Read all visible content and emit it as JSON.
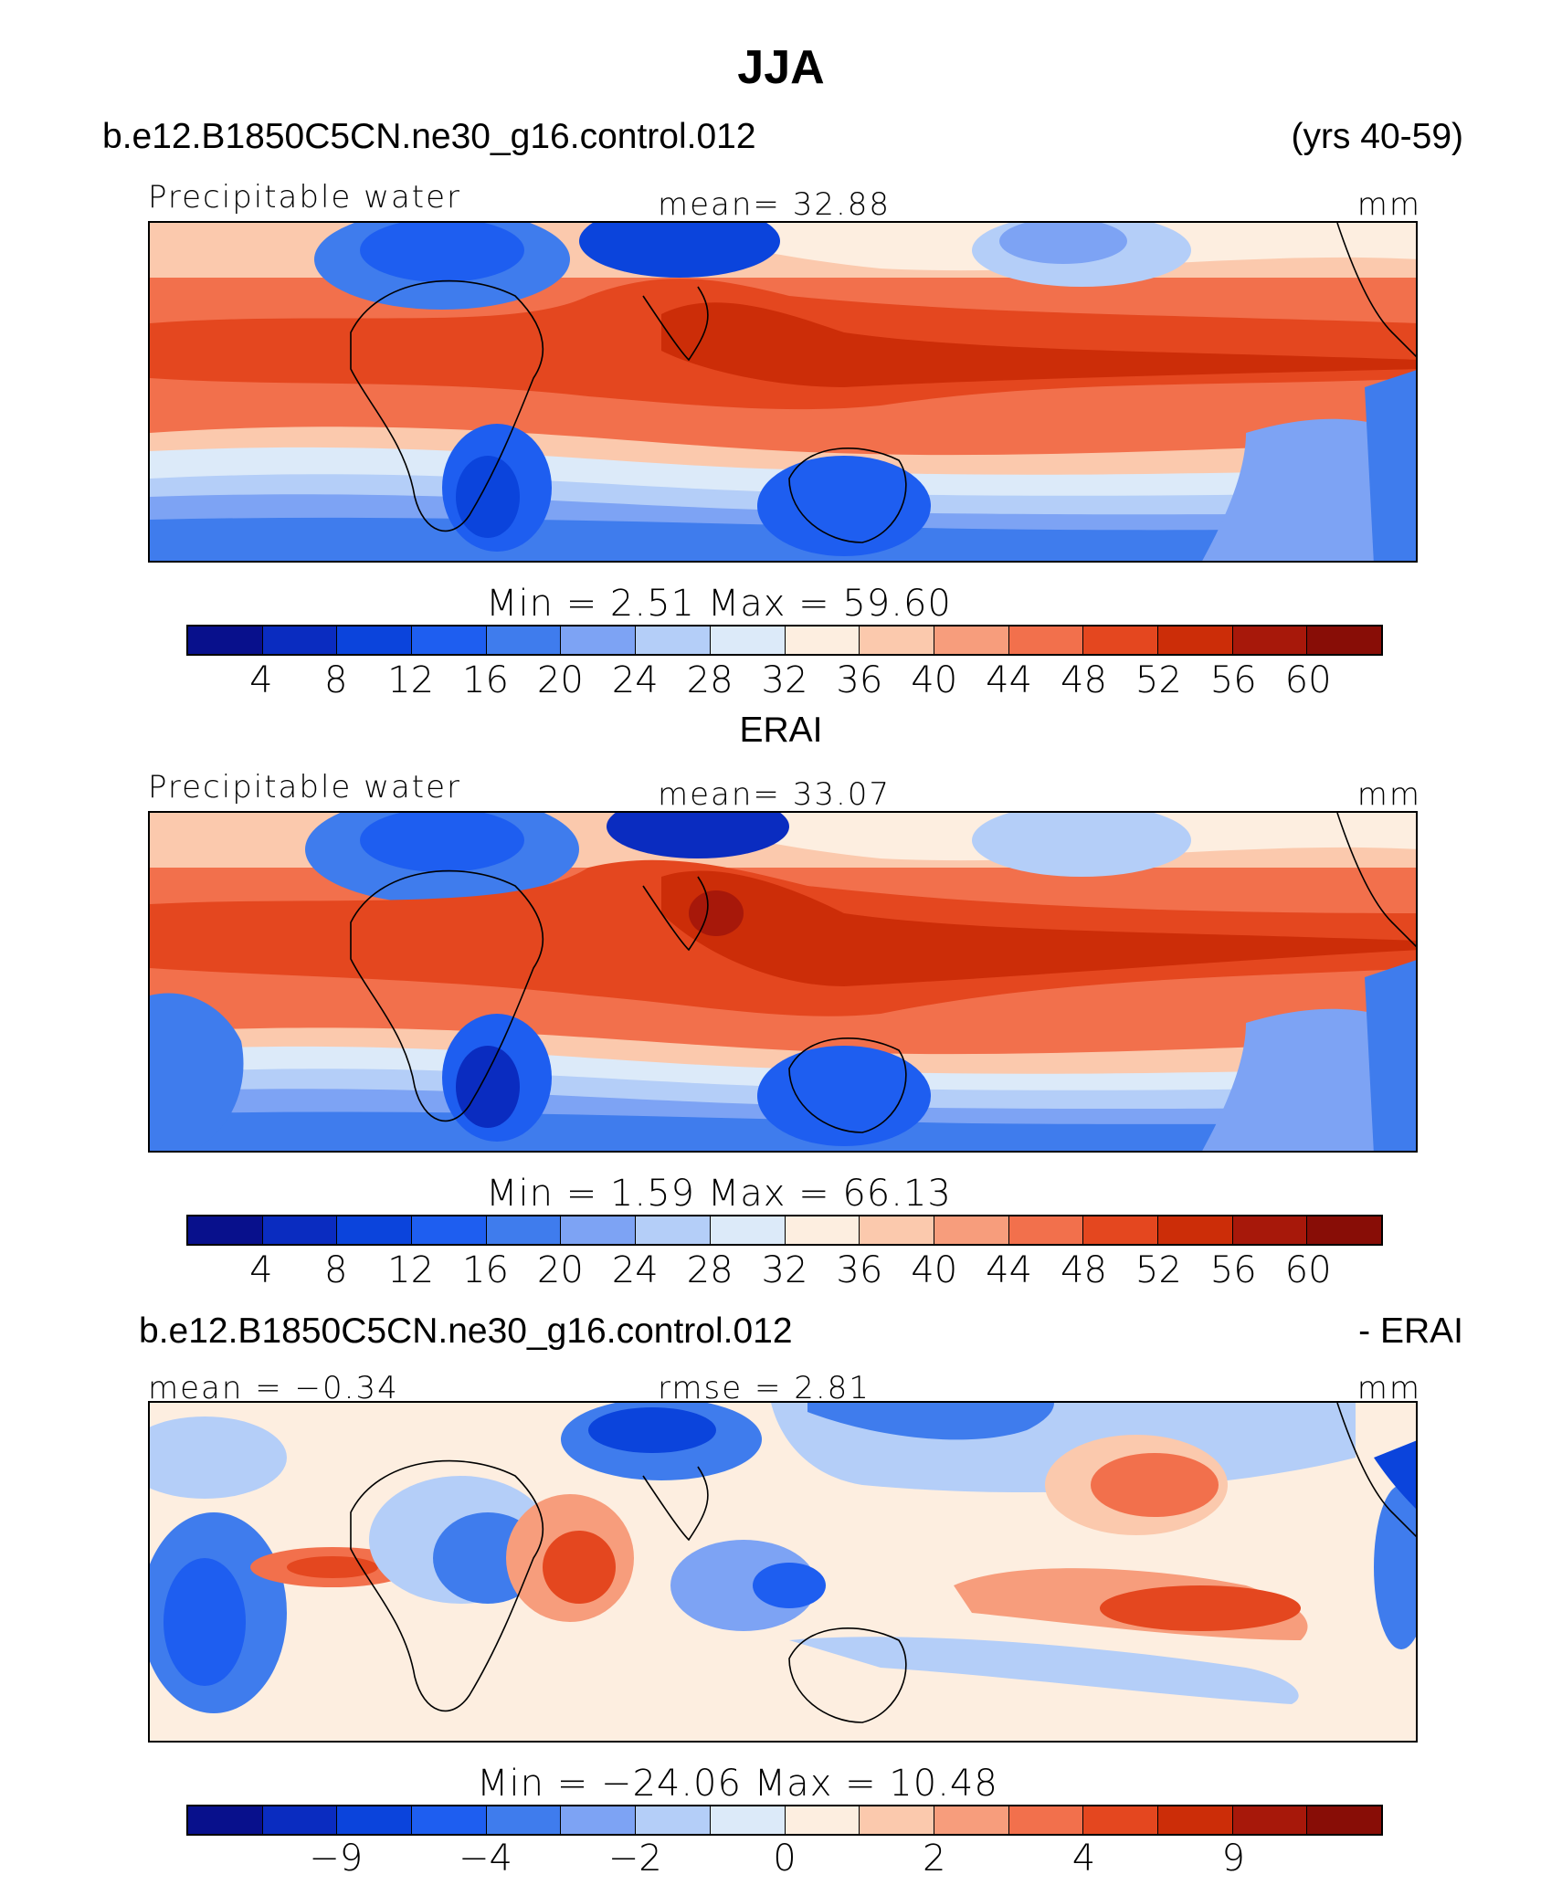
{
  "title": "JJA",
  "colors": [
    "#08108c",
    "#0a2cc0",
    "#0b44dc",
    "#1e5ef0",
    "#3f7ced",
    "#7da3f4",
    "#b4cef8",
    "#dceaf9",
    "#fdeee0",
    "#fbc9ad",
    "#f79d7c",
    "#f2704c",
    "#e4471f",
    "#cc2d08",
    "#a7180a",
    "#880d06"
  ],
  "panels": [
    {
      "header": {
        "left": "b.e12.B1850C5CN.ne30_g16.control.012",
        "right": "(yrs 40-59)"
      },
      "subtitle_left": "Precipitable water",
      "subtitle_center": "mean=   32.88",
      "units": "mm",
      "minmax": "Min  =     2.51  Max  =    59.60",
      "ticks": [
        "4",
        "8",
        "12",
        "16",
        "20",
        "24",
        "28",
        "32",
        "36",
        "40",
        "44",
        "48",
        "52",
        "56",
        "60"
      ]
    },
    {
      "header": {
        "left": "ERAI",
        "right": ""
      },
      "subtitle_left": "Precipitable water",
      "subtitle_center": "mean=   33.07",
      "units": "mm",
      "minmax": "Min  =     1.59  Max  =    66.13",
      "ticks": [
        "4",
        "8",
        "12",
        "16",
        "20",
        "24",
        "28",
        "32",
        "36",
        "40",
        "44",
        "48",
        "52",
        "56",
        "60"
      ]
    },
    {
      "header": {
        "left": "b.e12.B1850C5CN.ne30_g16.control.012",
        "right": "- ERAI"
      },
      "subtitle_left": "mean  =   −0.34",
      "subtitle_center": "rmse  =    2.81",
      "units": "mm",
      "minmax": "Min  =  −24.06  Max  =    10.48",
      "ticks": [
        "−9",
        "−4",
        "−2",
        "0",
        "2",
        "4",
        "9"
      ]
    }
  ]
}
